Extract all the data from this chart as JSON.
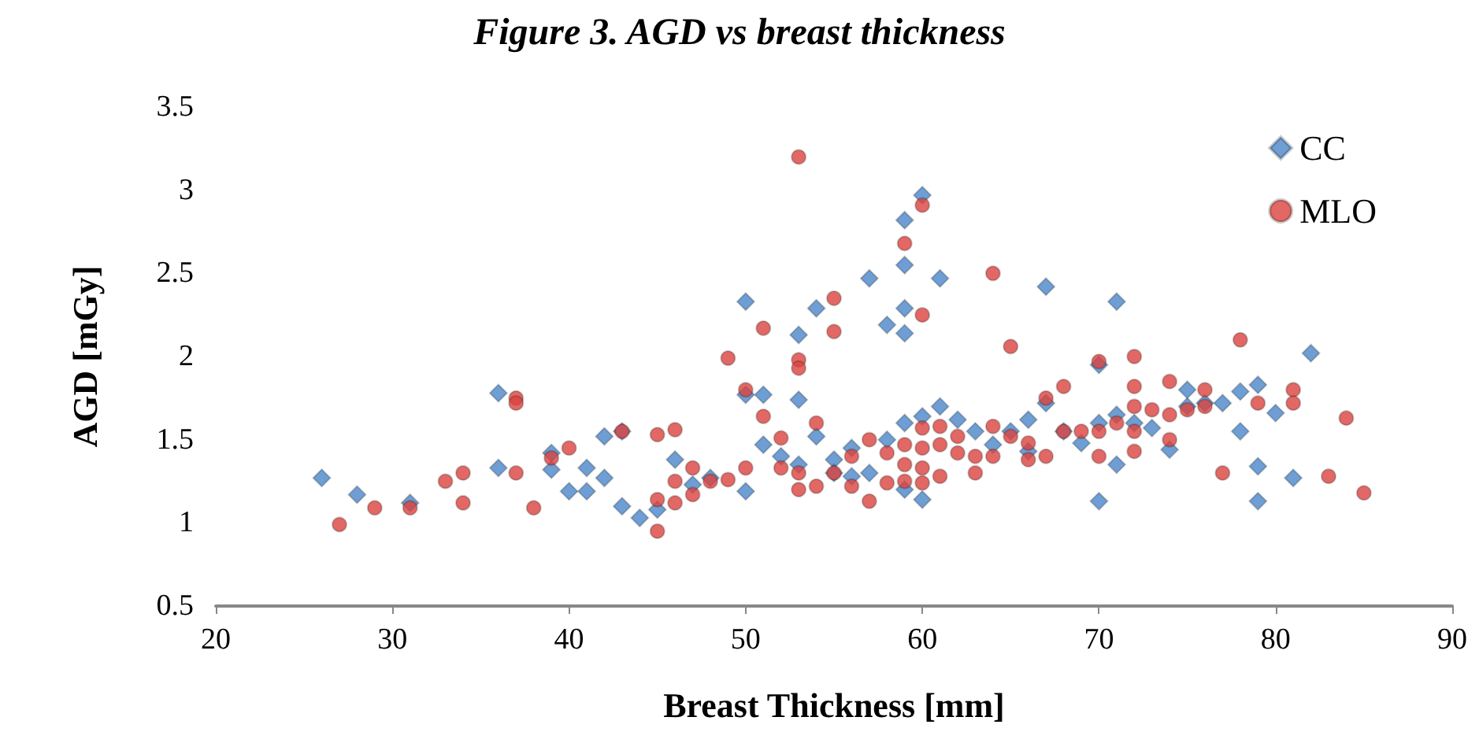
{
  "chart_data": {
    "type": "scatter",
    "title": "Figure 3. AGD vs breast thickness",
    "xlabel": "Breast Thickness [mm]",
    "ylabel": "AGD [mGy]",
    "xlim": [
      20,
      90
    ],
    "xticks": [
      20,
      30,
      40,
      50,
      60,
      70,
      80,
      90
    ],
    "ylim": [
      0.5,
      3.5
    ],
    "yticks": [
      0.5,
      1,
      1.5,
      2,
      2.5,
      3,
      3.5
    ],
    "grid": false,
    "legend": "top right",
    "series": [
      {
        "name": "CC",
        "color": "#4a86c8",
        "marker": "diamond",
        "x": [
          26,
          28,
          31,
          36,
          36,
          39,
          39,
          40,
          41,
          41,
          42,
          42,
          43,
          43,
          44,
          45,
          46,
          47,
          48,
          50,
          50,
          50,
          51,
          51,
          52,
          53,
          53,
          53,
          54,
          54,
          55,
          55,
          56,
          56,
          57,
          57,
          58,
          58,
          59,
          59,
          59,
          59,
          59,
          59,
          60,
          60,
          60,
          61,
          61,
          62,
          63,
          64,
          65,
          66,
          66,
          67,
          67,
          68,
          69,
          70,
          70,
          70,
          71,
          71,
          71,
          72,
          73,
          74,
          75,
          75,
          76,
          77,
          78,
          78,
          79,
          79,
          79,
          80,
          81,
          82
        ],
        "values": [
          1.27,
          1.17,
          1.12,
          1.78,
          1.33,
          1.32,
          1.42,
          1.19,
          1.19,
          1.33,
          1.27,
          1.52,
          1.55,
          1.1,
          1.03,
          1.08,
          1.38,
          1.23,
          1.27,
          2.33,
          1.77,
          1.19,
          1.77,
          1.47,
          1.4,
          2.13,
          1.74,
          1.35,
          2.29,
          1.52,
          1.38,
          1.3,
          1.28,
          1.45,
          2.47,
          1.3,
          2.19,
          1.5,
          2.82,
          2.55,
          2.29,
          2.14,
          1.6,
          1.2,
          2.97,
          1.64,
          1.14,
          2.47,
          1.7,
          1.62,
          1.55,
          1.47,
          1.55,
          1.43,
          1.62,
          2.42,
          1.72,
          1.55,
          1.48,
          1.95,
          1.13,
          1.6,
          2.33,
          1.35,
          1.65,
          1.6,
          1.57,
          1.44,
          1.7,
          1.8,
          1.72,
          1.72,
          1.79,
          1.55,
          1.83,
          1.34,
          1.13,
          1.66,
          1.27,
          2.02
        ]
      },
      {
        "name": "MLO",
        "color": "#d9423e",
        "marker": "circle",
        "x": [
          27,
          29,
          31,
          33,
          34,
          34,
          37,
          37,
          37,
          38,
          39,
          40,
          43,
          45,
          45,
          45,
          46,
          46,
          46,
          47,
          47,
          48,
          49,
          49,
          50,
          50,
          51,
          51,
          52,
          52,
          53,
          53,
          53,
          53,
          53,
          54,
          54,
          55,
          55,
          55,
          56,
          56,
          57,
          57,
          58,
          58,
          59,
          59,
          59,
          59,
          60,
          60,
          60,
          60,
          60,
          60,
          61,
          61,
          61,
          62,
          62,
          63,
          63,
          64,
          64,
          64,
          65,
          65,
          66,
          66,
          67,
          67,
          68,
          68,
          69,
          70,
          70,
          70,
          71,
          72,
          72,
          72,
          72,
          72,
          73,
          74,
          74,
          74,
          75,
          76,
          76,
          77,
          78,
          79,
          81,
          81,
          83,
          84,
          85
        ],
        "values": [
          0.99,
          1.09,
          1.09,
          1.25,
          1.3,
          1.12,
          1.75,
          1.72,
          1.3,
          1.09,
          1.39,
          1.45,
          1.55,
          1.53,
          1.14,
          0.95,
          1.56,
          1.25,
          1.12,
          1.33,
          1.17,
          1.25,
          1.99,
          1.26,
          1.8,
          1.33,
          2.17,
          1.64,
          1.51,
          1.33,
          3.2,
          1.98,
          1.93,
          1.3,
          1.2,
          1.6,
          1.22,
          2.35,
          2.15,
          1.3,
          1.4,
          1.22,
          1.5,
          1.13,
          1.42,
          1.24,
          2.68,
          1.47,
          1.35,
          1.25,
          2.91,
          2.25,
          1.57,
          1.45,
          1.33,
          1.24,
          1.58,
          1.47,
          1.28,
          1.52,
          1.42,
          1.4,
          1.3,
          2.5,
          1.58,
          1.4,
          2.06,
          1.52,
          1.48,
          1.38,
          1.75,
          1.4,
          1.82,
          1.55,
          1.55,
          1.97,
          1.4,
          1.55,
          1.6,
          2,
          1.82,
          1.7,
          1.55,
          1.43,
          1.68,
          1.85,
          1.65,
          1.5,
          1.68,
          1.8,
          1.7,
          1.3,
          2.1,
          1.72,
          1.8,
          1.72,
          1.28,
          1.63,
          1.18
        ]
      }
    ]
  }
}
